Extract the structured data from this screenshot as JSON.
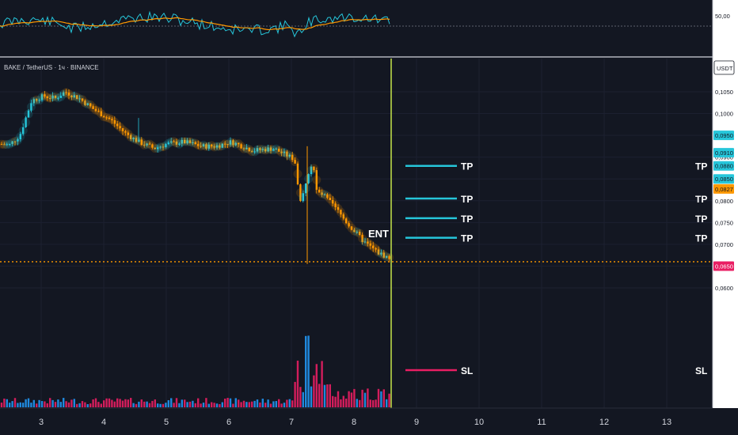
{
  "chart_data": {
    "type": "candlestick",
    "title": "BAKE / TetherUS · 1ч · BINANCE",
    "currency": "USDT",
    "x_ticks": [
      "3",
      "4",
      "5",
      "6",
      "7",
      "8",
      "9",
      "10",
      "11",
      "12",
      "13"
    ],
    "y_ticks": [
      "0,1050",
      "0,1000",
      "0,0950",
      "0,0900",
      "0,0850",
      "0,0800",
      "0,0750",
      "0,0700",
      "0,0650",
      "0,0600"
    ],
    "ylim": [
      0.0595,
      0.108
    ],
    "price_tags": [
      {
        "label": "0,0950",
        "value": 0.095,
        "color": "#26c6da"
      },
      {
        "label": "0,0910",
        "value": 0.091,
        "color": "#26c6da"
      },
      {
        "label": "0,0880",
        "value": 0.088,
        "color": "#26c6da"
      },
      {
        "label": "0,0850",
        "value": 0.085,
        "color": "#26c6da"
      },
      {
        "label": "0,0827",
        "value": 0.0827,
        "color": "#ff9800"
      },
      {
        "label": "0,0650",
        "value": 0.065,
        "color": "#e91e63"
      }
    ],
    "current_price": 0.066,
    "entry_label": "ENT",
    "targets": [
      {
        "label": "TP",
        "value": 0.088
      },
      {
        "label": "TP",
        "value": 0.0805
      },
      {
        "label": "TP",
        "value": 0.076
      },
      {
        "label": "TP",
        "value": 0.0715
      }
    ],
    "stop": {
      "label": "SL"
    },
    "indicator": {
      "axis_label": "50,00"
    },
    "colors": {
      "up": "#26c6da",
      "down": "#ff9800",
      "vol_up": "#2196f3",
      "vol_down": "#e91e63",
      "cursor": "#c6e54a",
      "tp": "#26c6da",
      "sl": "#e91e63"
    }
  }
}
